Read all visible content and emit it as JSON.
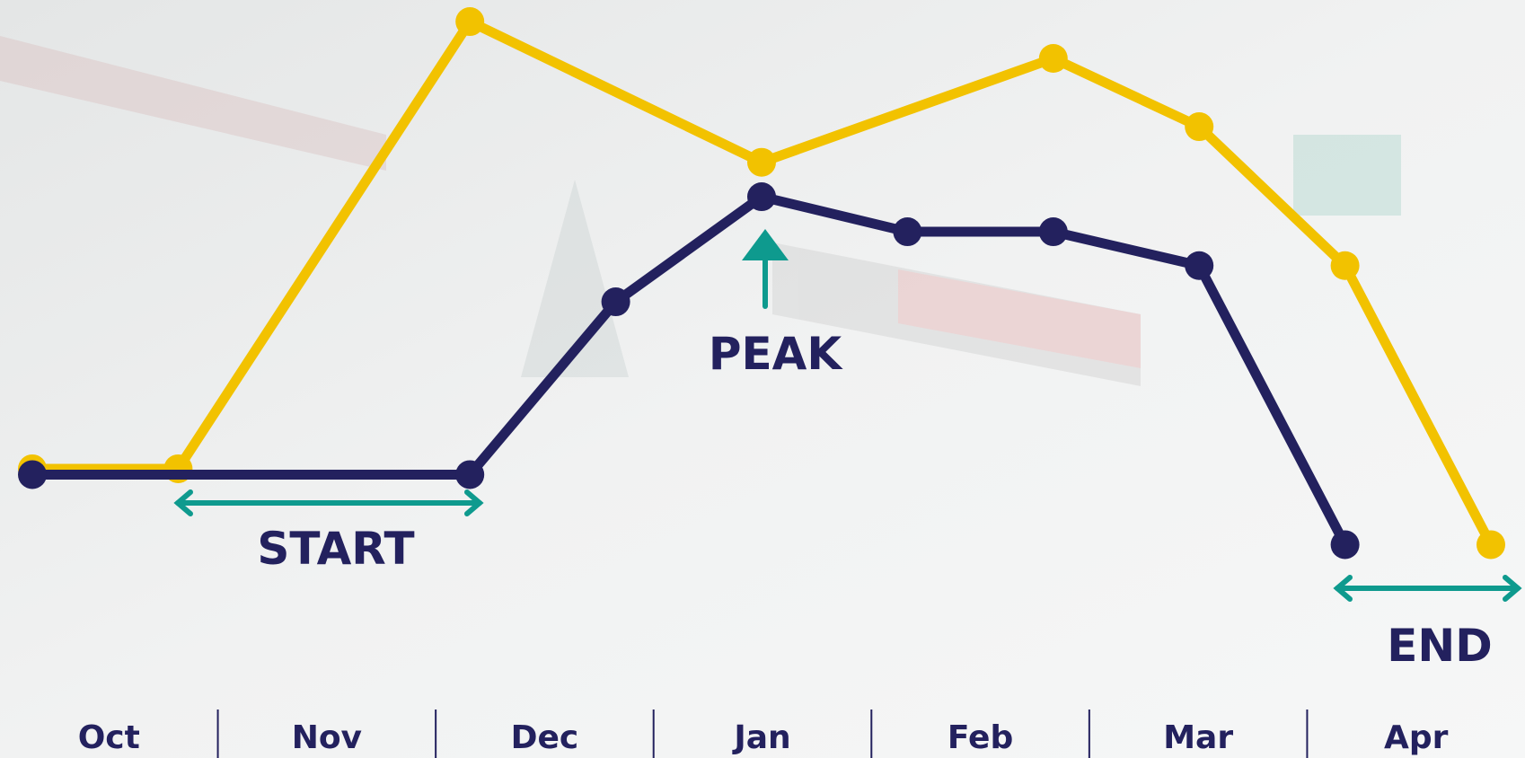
{
  "chart_data": {
    "type": "line",
    "categories": [
      "Oct",
      "Nov",
      "Dec",
      "Jan",
      "Feb",
      "Mar",
      "Apr"
    ],
    "xlim": [
      0,
      10
    ],
    "ylim": [
      0,
      100
    ],
    "series": [
      {
        "color": "#f2c200",
        "x": [
          0,
          1,
          3,
          5,
          7,
          8,
          9,
          10
        ],
        "values": [
          19.7,
          19.7,
          96.3,
          72.2,
          90,
          78.3,
          54.5,
          6.7
        ]
      },
      {
        "color": "#23215e",
        "x": [
          0,
          3,
          4,
          5,
          6,
          7,
          8,
          9
        ],
        "values": [
          18.7,
          18.7,
          48.3,
          66.3,
          60.3,
          60.3,
          54.5,
          6.7
        ]
      }
    ],
    "annotations": [
      "START",
      "PEAK",
      "END"
    ]
  }
}
